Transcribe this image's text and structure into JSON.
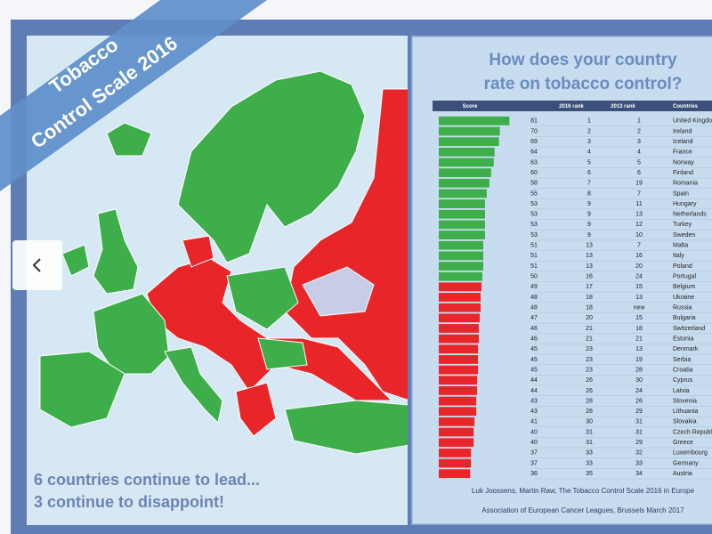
{
  "banner": {
    "line1": "Tobacco",
    "line2": "Control Scale 2016"
  },
  "caption": {
    "line1": "6 countries continue to lead...",
    "line2": "3 continue to disappoint!"
  },
  "panel": {
    "title_line1": "How does your country",
    "title_line2": "rate on tobacco control?",
    "table": {
      "header": [
        "Score",
        "2016 rank",
        "2013 rank",
        "Countries"
      ],
      "rows": [
        {
          "score": 81,
          "rank2016": "1",
          "rank2013": "1",
          "country": "United Kingdom",
          "color": "#3dae4a"
        },
        {
          "score": 70,
          "rank2016": "2",
          "rank2013": "2",
          "country": "Ireland",
          "color": "#3dae4a"
        },
        {
          "score": 69,
          "rank2016": "3",
          "rank2013": "3",
          "country": "Iceland",
          "color": "#3dae4a"
        },
        {
          "score": 64,
          "rank2016": "4",
          "rank2013": "4",
          "country": "France",
          "color": "#3dae4a"
        },
        {
          "score": 63,
          "rank2016": "5",
          "rank2013": "5",
          "country": "Norway",
          "color": "#3dae4a"
        },
        {
          "score": 60,
          "rank2016": "6",
          "rank2013": "6",
          "country": "Finland",
          "color": "#3dae4a"
        },
        {
          "score": 58,
          "rank2016": "7",
          "rank2013": "19",
          "country": "Romania",
          "color": "#3dae4a"
        },
        {
          "score": 55,
          "rank2016": "8",
          "rank2013": "7",
          "country": "Spain",
          "color": "#3dae4a"
        },
        {
          "score": 53,
          "rank2016": "9",
          "rank2013": "11",
          "country": "Hungary",
          "color": "#3dae4a"
        },
        {
          "score": 53,
          "rank2016": "9",
          "rank2013": "13",
          "country": "Netherlands",
          "color": "#3dae4a"
        },
        {
          "score": 53,
          "rank2016": "9",
          "rank2013": "12",
          "country": "Turkey",
          "color": "#3dae4a"
        },
        {
          "score": 53,
          "rank2016": "9",
          "rank2013": "10",
          "country": "Sweden",
          "color": "#3dae4a"
        },
        {
          "score": 51,
          "rank2016": "13",
          "rank2013": "7",
          "country": "Malta",
          "color": "#3dae4a"
        },
        {
          "score": 51,
          "rank2016": "13",
          "rank2013": "16",
          "country": "Italy",
          "color": "#3dae4a"
        },
        {
          "score": 51,
          "rank2016": "13",
          "rank2013": "20",
          "country": "Poland",
          "color": "#3dae4a"
        },
        {
          "score": 50,
          "rank2016": "16",
          "rank2013": "24",
          "country": "Portugal",
          "color": "#3dae4a"
        },
        {
          "score": 49,
          "rank2016": "17",
          "rank2013": "15",
          "country": "Belgium",
          "color": "#e8262a"
        },
        {
          "score": 48,
          "rank2016": "18",
          "rank2013": "13",
          "country": "Ukraine",
          "color": "#e8262a"
        },
        {
          "score": 48,
          "rank2016": "18",
          "rank2013": "new",
          "country": "Russia",
          "color": "#e8262a"
        },
        {
          "score": 47,
          "rank2016": "20",
          "rank2013": "15",
          "country": "Bulgaria",
          "color": "#e8262a"
        },
        {
          "score": 46,
          "rank2016": "21",
          "rank2013": "18",
          "country": "Switzerland",
          "color": "#e8262a"
        },
        {
          "score": 46,
          "rank2016": "21",
          "rank2013": "21",
          "country": "Estonia",
          "color": "#e8262a"
        },
        {
          "score": 45,
          "rank2016": "23",
          "rank2013": "13",
          "country": "Denmark",
          "color": "#e8262a"
        },
        {
          "score": 45,
          "rank2016": "23",
          "rank2013": "19",
          "country": "Serbia",
          "color": "#e8262a"
        },
        {
          "score": 45,
          "rank2016": "23",
          "rank2013": "28",
          "country": "Croatia",
          "color": "#e8262a"
        },
        {
          "score": 44,
          "rank2016": "26",
          "rank2013": "30",
          "country": "Cyprus",
          "color": "#e8262a"
        },
        {
          "score": 44,
          "rank2016": "26",
          "rank2013": "24",
          "country": "Latvia",
          "color": "#e8262a"
        },
        {
          "score": 43,
          "rank2016": "28",
          "rank2013": "26",
          "country": "Slovenia",
          "color": "#e8262a"
        },
        {
          "score": 43,
          "rank2016": "28",
          "rank2013": "29",
          "country": "Lithuania",
          "color": "#e8262a"
        },
        {
          "score": 41,
          "rank2016": "30",
          "rank2013": "31",
          "country": "Slovakia",
          "color": "#e8262a"
        },
        {
          "score": 40,
          "rank2016": "31",
          "rank2013": "31",
          "country": "Czech Republic",
          "color": "#e8262a"
        },
        {
          "score": 40,
          "rank2016": "31",
          "rank2013": "29",
          "country": "Greece",
          "color": "#e8262a"
        },
        {
          "score": 37,
          "rank2016": "33",
          "rank2013": "32",
          "country": "Luxembourg",
          "color": "#e8262a"
        },
        {
          "score": 37,
          "rank2016": "33",
          "rank2013": "33",
          "country": "Germany",
          "color": "#e8262a"
        },
        {
          "score": 36,
          "rank2016": "35",
          "rank2013": "34",
          "country": "Austria",
          "color": "#e8262a"
        }
      ]
    },
    "source_line1": "Luk Joossens, Martin Raw, The Tobacco Control Scale 2016 in Europe",
    "source_line2": "Association of European Cancer Leagues, Brussels March 2017"
  }
}
